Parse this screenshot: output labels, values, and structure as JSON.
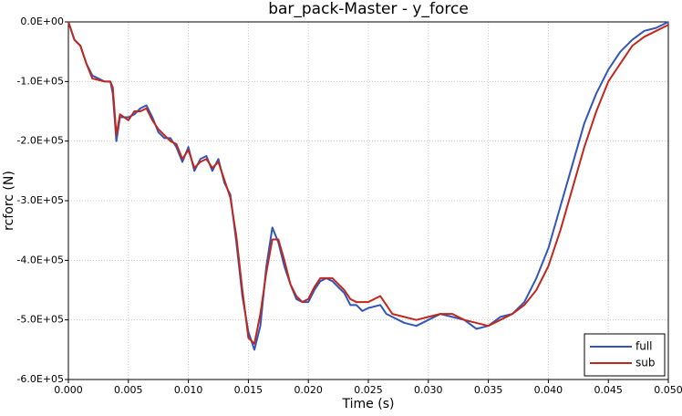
{
  "chart_data": {
    "type": "line",
    "title": "bar_pack-Master - y_force",
    "x_label": "Time (s)",
    "y_label": "rcforc (N)",
    "xlim": [
      0,
      0.05
    ],
    "ylim": [
      -600000,
      0
    ],
    "xticks": [
      {
        "value": 0,
        "label": "0.000"
      },
      0.005,
      {
        "value": 0.01,
        "label": "0.010"
      },
      0.015,
      {
        "value": 0.02,
        "label": "0.020"
      },
      0.025,
      {
        "value": 0.03,
        "label": "0.030"
      },
      0.035,
      {
        "value": 0.04,
        "label": "0.040"
      },
      0.045,
      {
        "value": 0.05,
        "label": "0.050"
      }
    ],
    "yticks": [
      {
        "value": 0,
        "label": "0.0E+00"
      },
      {
        "value": -100000,
        "label": "-1.0E+05"
      },
      {
        "value": -200000,
        "label": "-2.0E+05"
      },
      {
        "value": -300000,
        "label": "-3.0E+05"
      },
      {
        "value": -400000,
        "label": "-4.0E+05"
      },
      {
        "value": -500000,
        "label": "-5.0E+05"
      },
      {
        "value": -600000,
        "label": "-6.0E+05"
      }
    ],
    "grid": true,
    "legend": "lower right",
    "x": [
      0,
      0.0005,
      0.001,
      0.0015,
      0.002,
      0.003,
      0.0035,
      0.0037,
      0.004,
      0.0043,
      0.005,
      0.0055,
      0.006,
      0.0065,
      0.007,
      0.0075,
      0.008,
      0.0085,
      0.009,
      0.0095,
      0.01,
      0.0105,
      0.011,
      0.0115,
      0.012,
      0.0125,
      0.013,
      0.0135,
      0.014,
      0.0145,
      0.015,
      0.0155,
      0.016,
      0.0165,
      0.017,
      0.0175,
      0.018,
      0.0185,
      0.019,
      0.0195,
      0.02,
      0.0205,
      0.021,
      0.0215,
      0.022,
      0.0225,
      0.023,
      0.0235,
      0.024,
      0.0245,
      0.025,
      0.026,
      0.0265,
      0.027,
      0.028,
      0.029,
      0.03,
      0.031,
      0.032,
      0.033,
      0.034,
      0.035,
      0.036,
      0.037,
      0.038,
      0.039,
      0.04,
      0.041,
      0.042,
      0.043,
      0.044,
      0.045,
      0.046,
      0.047,
      0.048,
      0.049,
      0.05
    ],
    "series": [
      {
        "name": "full",
        "color": "#3355bb",
        "values": [
          0,
          -30000,
          -40000,
          -70000,
          -90000,
          -100000,
          -100000,
          -120000,
          -200000,
          -160000,
          -160000,
          -155000,
          -145000,
          -140000,
          -160000,
          -185000,
          -195000,
          -195000,
          -210000,
          -235000,
          -210000,
          -250000,
          -230000,
          -225000,
          -250000,
          -230000,
          -270000,
          -290000,
          -370000,
          -460000,
          -520000,
          -550000,
          -510000,
          -410000,
          -345000,
          -370000,
          -410000,
          -440000,
          -465000,
          -470000,
          -470000,
          -450000,
          -435000,
          -430000,
          -435000,
          -445000,
          -455000,
          -475000,
          -475000,
          -485000,
          -480000,
          -475000,
          -490000,
          -495000,
          -505000,
          -510000,
          -500000,
          -490000,
          -495000,
          -500000,
          -515000,
          -510000,
          -495000,
          -490000,
          -470000,
          -430000,
          -380000,
          -310000,
          -240000,
          -170000,
          -120000,
          -80000,
          -50000,
          -30000,
          -15000,
          -10000,
          0
        ]
      },
      {
        "name": "sub",
        "color": "#c0281e",
        "values": [
          0,
          -30000,
          -40000,
          -70000,
          -95000,
          -100000,
          -100000,
          -110000,
          -190000,
          -155000,
          -165000,
          -150000,
          -150000,
          -145000,
          -165000,
          -180000,
          -190000,
          -200000,
          -205000,
          -230000,
          -215000,
          -245000,
          -235000,
          -230000,
          -245000,
          -235000,
          -265000,
          -295000,
          -360000,
          -450000,
          -530000,
          -540000,
          -490000,
          -420000,
          -365000,
          -365000,
          -400000,
          -440000,
          -460000,
          -470000,
          -465000,
          -445000,
          -430000,
          -430000,
          -430000,
          -440000,
          -450000,
          -465000,
          -470000,
          -470000,
          -470000,
          -460000,
          -475000,
          -490000,
          -495000,
          -500000,
          -495000,
          -490000,
          -490000,
          -500000,
          -505000,
          -510000,
          -500000,
          -490000,
          -475000,
          -450000,
          -410000,
          -350000,
          -280000,
          -210000,
          -150000,
          -100000,
          -70000,
          -40000,
          -25000,
          -15000,
          -5000
        ]
      }
    ]
  }
}
